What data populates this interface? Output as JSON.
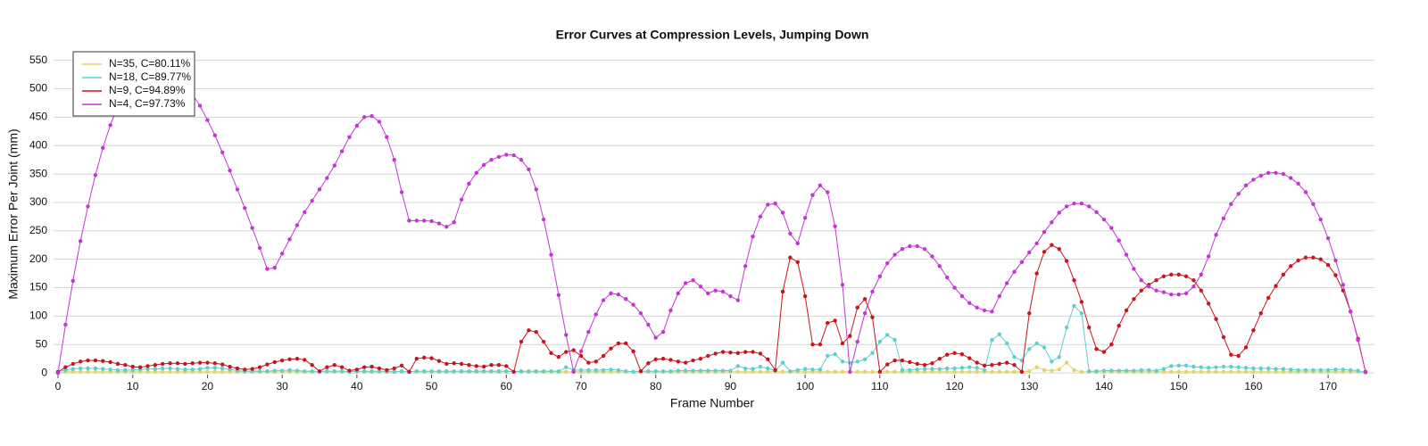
{
  "chart_data": {
    "type": "line",
    "title": "Error Curves at Compression Levels, Jumping Down",
    "x_label": "Frame Number",
    "y_label": "Maximum Error Per Joint (mm)",
    "xlim": [
      -0.6,
      176.2
    ],
    "ylim": [
      -3,
      562
    ],
    "xticks": [
      0,
      10,
      20,
      30,
      40,
      50,
      60,
      70,
      80,
      90,
      100,
      110,
      120,
      130,
      140,
      150,
      160,
      170
    ],
    "yticks": [
      0,
      50,
      100,
      150,
      200,
      250,
      300,
      350,
      400,
      450,
      500,
      550
    ],
    "grid": true,
    "legend": "upper left",
    "x": [
      0,
      1,
      2,
      3,
      4,
      5,
      6,
      7,
      8,
      9,
      10,
      11,
      12,
      13,
      14,
      15,
      16,
      17,
      18,
      19,
      20,
      21,
      22,
      23,
      24,
      25,
      26,
      27,
      28,
      29,
      30,
      31,
      32,
      33,
      34,
      35,
      36,
      37,
      38,
      39,
      40,
      41,
      42,
      43,
      44,
      45,
      46,
      47,
      48,
      49,
      50,
      51,
      52,
      53,
      54,
      55,
      56,
      57,
      58,
      59,
      60,
      61,
      62,
      63,
      64,
      65,
      66,
      67,
      68,
      69,
      70,
      71,
      72,
      73,
      74,
      75,
      76,
      77,
      78,
      79,
      80,
      81,
      82,
      83,
      84,
      85,
      86,
      87,
      88,
      89,
      90,
      91,
      92,
      93,
      94,
      95,
      96,
      97,
      98,
      99,
      100,
      101,
      102,
      103,
      104,
      105,
      106,
      107,
      108,
      109,
      110,
      111,
      112,
      113,
      114,
      115,
      116,
      117,
      118,
      119,
      120,
      121,
      122,
      123,
      124,
      125,
      126,
      127,
      128,
      129,
      130,
      131,
      132,
      133,
      134,
      135,
      136,
      137,
      138,
      139,
      140,
      141,
      142,
      143,
      144,
      145,
      146,
      147,
      148,
      149,
      150,
      151,
      152,
      153,
      154,
      155,
      156,
      157,
      158,
      159,
      160,
      161,
      162,
      163,
      164,
      165,
      166,
      167,
      168,
      169,
      170,
      171,
      172,
      173,
      174,
      175
    ],
    "series": [
      {
        "name": "N=35, C=80.11%",
        "color": "#e2d36a",
        "values": [
          0,
          2,
          2,
          2,
          2,
          2,
          2,
          2,
          2,
          2,
          2,
          2,
          2,
          2,
          2,
          2,
          2,
          2,
          2,
          2,
          2,
          2,
          2,
          2,
          2,
          2,
          2,
          2,
          2,
          2,
          2,
          2,
          2,
          2,
          2,
          2,
          2,
          2,
          2,
          2,
          2,
          2,
          2,
          2,
          2,
          2,
          2,
          2,
          2,
          2,
          2,
          2,
          2,
          2,
          2,
          2,
          2,
          2,
          2,
          2,
          2,
          2,
          2,
          2,
          2,
          2,
          2,
          2,
          2,
          2,
          2,
          2,
          2,
          2,
          2,
          2,
          2,
          2,
          2,
          2,
          2,
          2,
          2,
          2,
          2,
          2,
          2,
          2,
          2,
          2,
          2,
          2,
          2,
          2,
          2,
          2,
          2,
          2,
          2,
          2,
          2,
          2,
          2,
          2,
          2,
          2,
          2,
          2,
          2,
          2,
          2,
          2,
          2,
          2,
          2,
          2,
          2,
          2,
          2,
          2,
          2,
          2,
          2,
          2,
          2,
          2,
          2,
          2,
          2,
          2,
          3,
          10,
          5,
          4,
          6,
          18,
          5,
          2,
          2,
          2,
          2,
          2,
          2,
          2,
          2,
          2,
          2,
          2,
          2,
          2,
          2,
          2,
          2,
          2,
          2,
          2,
          2,
          2,
          2,
          2,
          2,
          2,
          2,
          2,
          2,
          2,
          2,
          2,
          2,
          2,
          2,
          2,
          2,
          2,
          2,
          0
        ]
      },
      {
        "name": "N=18, C=89.77%",
        "color": "#5ccfcf",
        "values": [
          2,
          5,
          7,
          8,
          8,
          8,
          7,
          6,
          5,
          5,
          5,
          6,
          7,
          7,
          8,
          8,
          7,
          6,
          6,
          7,
          9,
          9,
          8,
          6,
          4,
          3,
          3,
          3,
          3,
          4,
          4,
          5,
          4,
          3,
          3,
          2,
          3,
          3,
          3,
          2,
          3,
          3,
          3,
          3,
          2,
          2,
          3,
          2,
          3,
          3,
          3,
          3,
          3,
          3,
          3,
          3,
          3,
          3,
          3,
          3,
          3,
          2,
          3,
          3,
          3,
          3,
          3,
          3,
          10,
          5,
          5,
          5,
          5,
          5,
          6,
          5,
          3,
          2,
          3,
          3,
          3,
          3,
          3,
          4,
          4,
          4,
          4,
          4,
          4,
          4,
          4,
          12,
          8,
          7,
          11,
          8,
          4,
          18,
          3,
          5,
          7,
          6,
          6,
          30,
          33,
          20,
          18,
          20,
          24,
          35,
          55,
          67,
          58,
          5,
          5,
          6,
          7,
          7,
          7,
          8,
          8,
          9,
          10,
          9,
          5,
          58,
          68,
          52,
          28,
          22,
          42,
          52,
          45,
          20,
          28,
          80,
          118,
          105,
          3,
          3,
          4,
          4,
          4,
          4,
          4,
          5,
          5,
          4,
          7,
          12,
          13,
          13,
          11,
          10,
          9,
          10,
          11,
          11,
          10,
          9,
          8,
          8,
          8,
          7,
          7,
          6,
          5,
          5,
          5,
          5,
          5,
          6,
          6,
          5,
          4,
          1
        ]
      },
      {
        "name": "N=9, C=94.89%",
        "color": "#c8141c",
        "values": [
          2,
          10,
          16,
          20,
          22,
          22,
          21,
          19,
          16,
          14,
          11,
          10,
          12,
          14,
          16,
          17,
          17,
          16,
          17,
          18,
          18,
          17,
          15,
          11,
          8,
          6,
          7,
          10,
          15,
          19,
          22,
          24,
          25,
          23,
          14,
          3,
          10,
          14,
          10,
          4,
          6,
          10,
          11,
          8,
          5,
          8,
          13,
          2,
          25,
          27,
          26,
          21,
          16,
          17,
          16,
          14,
          12,
          11,
          14,
          14,
          12,
          2,
          55,
          75,
          72,
          55,
          35,
          28,
          37,
          40,
          30,
          18,
          20,
          30,
          43,
          52,
          52,
          38,
          3,
          17,
          24,
          25,
          23,
          20,
          18,
          22,
          25,
          30,
          34,
          37,
          36,
          35,
          37,
          37,
          34,
          24,
          5,
          143,
          203,
          195,
          135,
          50,
          50,
          88,
          92,
          52,
          65,
          115,
          130,
          98,
          2,
          15,
          22,
          22,
          19,
          16,
          14,
          17,
          25,
          32,
          35,
          33,
          26,
          18,
          13,
          14,
          16,
          18,
          14,
          2,
          105,
          175,
          213,
          225,
          218,
          197,
          163,
          125,
          80,
          42,
          37,
          50,
          83,
          110,
          130,
          145,
          155,
          163,
          170,
          173,
          173,
          170,
          163,
          145,
          122,
          95,
          63,
          32,
          30,
          45,
          75,
          105,
          132,
          153,
          173,
          188,
          198,
          203,
          203,
          200,
          190,
          172,
          145,
          108,
          60,
          2
        ]
      },
      {
        "name": "N=4, C=97.73%",
        "color": "#c435d2",
        "values": [
          0,
          85,
          162,
          232,
          293,
          348,
          396,
          436,
          470,
          495,
          512,
          525,
          535,
          540,
          540,
          535,
          525,
          510,
          490,
          470,
          445,
          418,
          388,
          356,
          323,
          290,
          255,
          220,
          183,
          185,
          210,
          235,
          260,
          283,
          303,
          323,
          343,
          365,
          390,
          415,
          435,
          450,
          452,
          442,
          415,
          375,
          318,
          268,
          268,
          268,
          267,
          263,
          257,
          265,
          305,
          333,
          352,
          366,
          375,
          380,
          384,
          383,
          375,
          358,
          323,
          270,
          208,
          137,
          67,
          2,
          38,
          72,
          103,
          128,
          140,
          138,
          130,
          120,
          105,
          85,
          62,
          72,
          110,
          140,
          158,
          163,
          152,
          140,
          145,
          143,
          135,
          128,
          188,
          240,
          275,
          296,
          298,
          282,
          245,
          228,
          273,
          313,
          330,
          318,
          258,
          155,
          2,
          55,
          105,
          143,
          170,
          193,
          208,
          218,
          223,
          223,
          218,
          205,
          188,
          168,
          150,
          135,
          123,
          115,
          110,
          108,
          135,
          158,
          178,
          195,
          212,
          228,
          248,
          265,
          282,
          293,
          298,
          298,
          293,
          283,
          270,
          255,
          233,
          208,
          183,
          163,
          152,
          145,
          142,
          138,
          138,
          140,
          152,
          173,
          205,
          243,
          272,
          297,
          315,
          330,
          340,
          347,
          352,
          352,
          350,
          343,
          333,
          318,
          297,
          270,
          237,
          198,
          155,
          108,
          58,
          2
        ]
      }
    ]
  }
}
